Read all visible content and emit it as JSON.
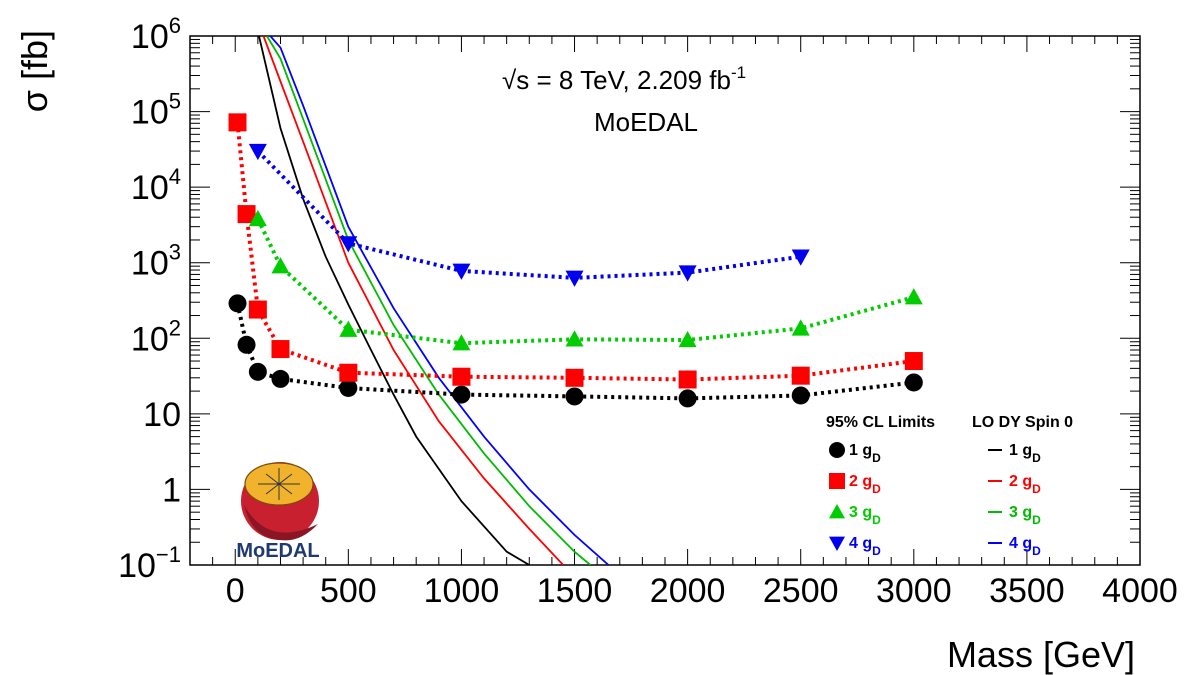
{
  "chart_data": {
    "type": "line",
    "xlabel": "Mass [GeV]",
    "ylabel": "σ [fb]",
    "xlim": [
      -200,
      4000
    ],
    "ylim": [
      0.1,
      1000000
    ],
    "yscale": "log",
    "xticks": [
      "0",
      "500",
      "1000",
      "1500",
      "2000",
      "2500",
      "3000",
      "3500",
      "4000"
    ],
    "yticks": [
      {
        "base": "10",
        "exp": "6",
        "value": 1000000
      },
      {
        "base": "10",
        "exp": "5",
        "value": 100000
      },
      {
        "base": "10",
        "exp": "4",
        "value": 10000
      },
      {
        "base": "10",
        "exp": "3",
        "value": 1000
      },
      {
        "base": "10",
        "exp": "2",
        "value": 100
      },
      {
        "base": "10",
        "exp": "",
        "value": 10
      },
      {
        "base": "1",
        "exp": "",
        "value": 1
      },
      {
        "base": "10",
        "exp": "−1",
        "value": 0.1
      }
    ],
    "annotations": {
      "energy_sqrt": "√s",
      "energy_rest": " = 8 TeV, 2.209 fb",
      "energy_sup": "-1",
      "experiment": "MoEDAL"
    },
    "legend": {
      "placement": "bottom-right",
      "limits_title": "95% CL Limits",
      "theory_title": "LO DY Spin 0",
      "entries": [
        {
          "prefix": "1 g",
          "sub": "D"
        },
        {
          "prefix": "2 g",
          "sub": "D"
        },
        {
          "prefix": "3 g",
          "sub": "D"
        },
        {
          "prefix": "4 g",
          "sub": "D"
        }
      ]
    },
    "series": [
      {
        "name": "1 gD limit",
        "color": "#000000",
        "marker": "circle",
        "x": [
          10,
          50,
          100,
          200,
          500,
          1000,
          1500,
          2000,
          2500,
          3000
        ],
        "y": [
          290,
          82,
          36,
          29,
          22,
          18,
          17,
          16,
          17.5,
          26
        ]
      },
      {
        "name": "2 gD limit",
        "color": "#ff0000",
        "marker": "square",
        "x": [
          10,
          50,
          100,
          200,
          500,
          1000,
          1500,
          2000,
          2500,
          3000
        ],
        "y": [
          72000,
          4400,
          240,
          72,
          35,
          31,
          30,
          28.5,
          32,
          50
        ]
      },
      {
        "name": "3 gD limit",
        "color": "#00cc00",
        "marker": "triangle-up",
        "x": [
          100,
          200,
          500,
          1000,
          1500,
          2000,
          2500,
          3000
        ],
        "y": [
          3800,
          900,
          130,
          86,
          97,
          95,
          135,
          350
        ]
      },
      {
        "name": "4 gD limit",
        "color": "#0000ee",
        "marker": "triangle-down",
        "x": [
          100,
          500,
          1000,
          1500,
          2000,
          2500
        ],
        "y": [
          30000,
          1800,
          780,
          630,
          740,
          1200
        ]
      }
    ],
    "theory_curves": [
      {
        "name": "1 gD LO DY Spin 0",
        "color": "#000000",
        "x": [
          105,
          200,
          300,
          400,
          500,
          600,
          700,
          800,
          1000,
          1200,
          1300
        ],
        "y": [
          1000000,
          60000,
          7000,
          1200,
          280,
          70,
          18,
          5,
          0.7,
          0.15,
          0.1
        ]
      },
      {
        "name": "2 gD LO DY Spin 0",
        "color": "#ff0000",
        "x": [
          125,
          200,
          300,
          500,
          700,
          900,
          1100,
          1300,
          1450
        ],
        "y": [
          1000000,
          250000,
          40000,
          1000,
          70,
          8,
          1.4,
          0.3,
          0.1
        ]
      },
      {
        "name": "3 gD LO DY Spin 0",
        "color": "#00bb00",
        "x": [
          140,
          200,
          300,
          500,
          700,
          900,
          1100,
          1300,
          1500,
          1570
        ],
        "y": [
          1000000,
          500000,
          80000,
          2000,
          150,
          18,
          3,
          0.6,
          0.15,
          0.1
        ]
      },
      {
        "name": "4 gD LO DY Spin 0",
        "color": "#0000ff",
        "x": [
          155,
          200,
          300,
          500,
          700,
          900,
          1100,
          1300,
          1500,
          1650
        ],
        "y": [
          1000000,
          700000,
          120000,
          3000,
          250,
          30,
          5,
          1,
          0.25,
          0.1
        ]
      }
    ]
  },
  "logo": {
    "text": "MoEDAL"
  }
}
